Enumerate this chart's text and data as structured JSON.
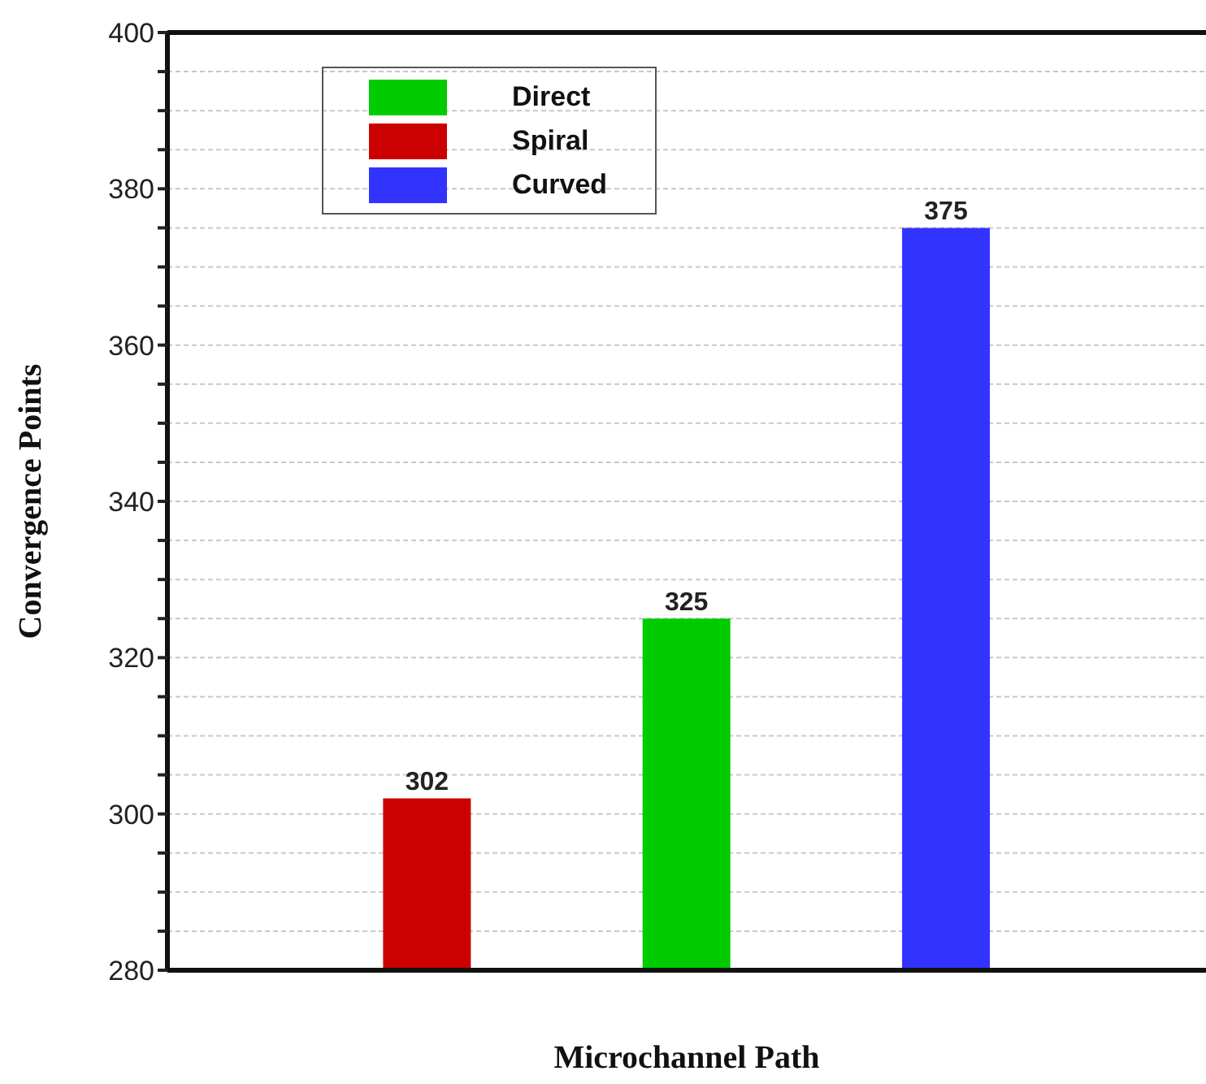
{
  "chart_data": {
    "type": "bar",
    "xlabel": "Microchannel Path",
    "ylabel": "Convergence Points",
    "categories": [
      null,
      null,
      null
    ],
    "series": [
      {
        "name": "Direct",
        "color": "#00cc00",
        "values": [
          null,
          325,
          null
        ]
      },
      {
        "name": "Spiral",
        "color": "#cc0000",
        "values": [
          302,
          null,
          null
        ]
      },
      {
        "name": "Curved",
        "color": "#3333ff",
        "values": [
          null,
          null,
          375
        ]
      }
    ],
    "stacked": true,
    "data_labels": true,
    "ylim": [
      280,
      400
    ],
    "yticks": [
      280,
      {
        "value": 285,
        "label": null
      },
      {
        "value": 290,
        "label": null
      },
      {
        "value": 295,
        "label": null
      },
      300,
      {
        "value": 305,
        "label": null
      },
      {
        "value": 310,
        "label": null
      },
      {
        "value": 315,
        "label": null
      },
      320,
      {
        "value": 325,
        "label": null
      },
      {
        "value": 330,
        "label": null
      },
      {
        "value": 335,
        "label": null
      },
      340,
      {
        "value": 345,
        "label": null
      },
      {
        "value": 350,
        "label": null
      },
      {
        "value": 355,
        "label": null
      },
      360,
      {
        "value": 365,
        "label": null
      },
      {
        "value": 370,
        "label": null
      },
      {
        "value": 375,
        "label": null
      },
      380,
      {
        "value": 385,
        "label": null
      },
      {
        "value": 390,
        "label": null
      },
      {
        "value": 395,
        "label": null
      },
      400
    ],
    "grid": "y",
    "legend": "top left"
  }
}
